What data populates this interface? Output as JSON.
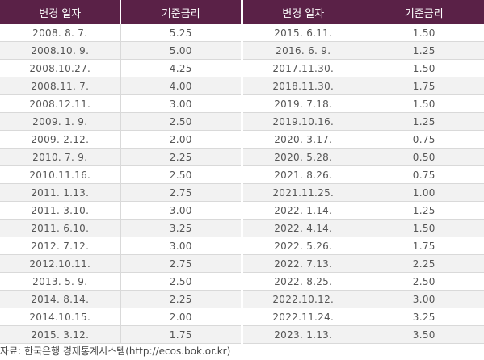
{
  "table": {
    "headers": [
      "변경 일자",
      "기준금리"
    ],
    "left_rows": [
      [
        "2008. 8. 7.",
        "5.25"
      ],
      [
        "2008.10. 9.",
        "5.00"
      ],
      [
        "2008.10.27.",
        "4.25"
      ],
      [
        "2008.11. 7.",
        "4.00"
      ],
      [
        "2008.12.11.",
        "3.00"
      ],
      [
        "2009. 1. 9.",
        "2.50"
      ],
      [
        "2009. 2.12.",
        "2.00"
      ],
      [
        "2010. 7. 9.",
        "2.25"
      ],
      [
        "2010.11.16.",
        "2.50"
      ],
      [
        "2011. 1.13.",
        "2.75"
      ],
      [
        "2011. 3.10.",
        "3.00"
      ],
      [
        "2011. 6.10.",
        "3.25"
      ],
      [
        "2012. 7.12.",
        "3.00"
      ],
      [
        "2012.10.11.",
        "2.75"
      ],
      [
        "2013. 5. 9.",
        "2.50"
      ],
      [
        "2014. 8.14.",
        "2.25"
      ],
      [
        "2014.10.15.",
        "2.00"
      ],
      [
        "2015. 3.12.",
        "1.75"
      ]
    ],
    "right_rows": [
      [
        "2015. 6.11.",
        "1.50"
      ],
      [
        "2016. 6. 9.",
        "1.25"
      ],
      [
        "2017.11.30.",
        "1.50"
      ],
      [
        "2018.11.30.",
        "1.75"
      ],
      [
        "2019. 7.18.",
        "1.50"
      ],
      [
        "2019.10.16.",
        "1.25"
      ],
      [
        "2020. 3.17.",
        "0.75"
      ],
      [
        "2020. 5.28.",
        "0.50"
      ],
      [
        "2021. 8.26.",
        "0.75"
      ],
      [
        "2021.11.25.",
        "1.00"
      ],
      [
        "2022. 1.14.",
        "1.25"
      ],
      [
        "2022. 4.14.",
        "1.50"
      ],
      [
        "2022. 5.26.",
        "1.75"
      ],
      [
        "2022. 7.13.",
        "2.25"
      ],
      [
        "2022. 8.25.",
        "2.50"
      ],
      [
        "2022.10.12.",
        "3.00"
      ],
      [
        "2022.11.24.",
        "3.25"
      ],
      [
        "2023. 1.13.",
        "3.50"
      ]
    ]
  },
  "source": "자료: 한국은행 경제통계시스템(http://ecos.bok.or.kr)",
  "colors": {
    "header_bg": "#5a2147",
    "header_text": "#ffffff",
    "row_alt_bg": "#f2f2f2",
    "grid_line": "#d9d9d9"
  }
}
